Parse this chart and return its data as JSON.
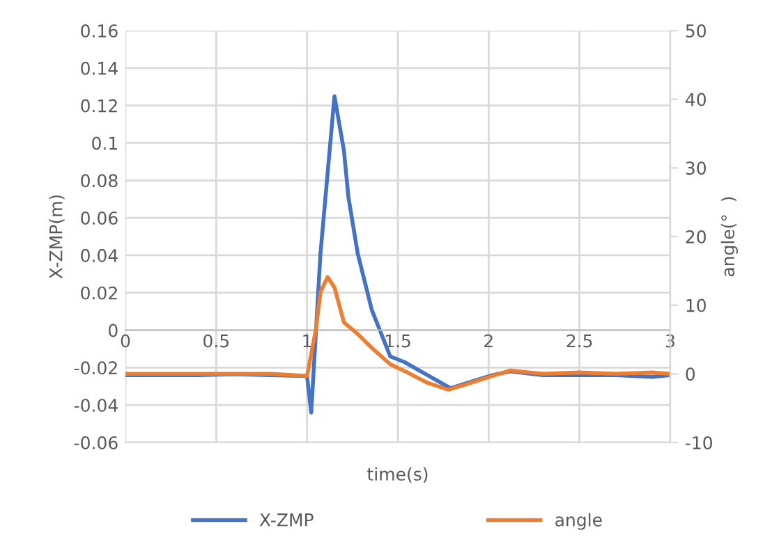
{
  "chart_data": {
    "type": "line",
    "xlabel": "time(s)",
    "ylabel": "X-ZMP(m)",
    "y2label": "angle(°  )",
    "xlim": [
      0,
      3
    ],
    "xticks": [
      0,
      0.5,
      1,
      1.5,
      2,
      2.5,
      3
    ],
    "ylim": [
      -0.06,
      0.16
    ],
    "yticks": [
      -0.06,
      -0.04,
      -0.02,
      0,
      0.02,
      0.04,
      0.06,
      0.08,
      0.1,
      0.12,
      0.14,
      0.16
    ],
    "y2lim": [
      -10,
      50
    ],
    "y2ticks": [
      -10,
      0,
      10,
      20,
      30,
      40,
      50
    ],
    "grid": true,
    "legend": "bottom",
    "marker": "none",
    "line_style": "solid",
    "series": [
      {
        "name": "X-ZMP",
        "color": "#4472c4",
        "x": [
          0,
          0.2,
          0.4,
          0.6,
          0.8,
          1.0,
          1.023,
          1.074,
          1.151,
          1.203,
          1.228,
          1.279,
          1.356,
          1.458,
          1.535,
          1.663,
          1.79,
          2.02,
          2.12,
          2.3,
          2.5,
          2.7,
          2.9,
          3.0
        ],
        "values": [
          -0.024,
          -0.024,
          -0.024,
          -0.0235,
          -0.024,
          -0.0245,
          -0.044,
          0.041,
          0.125,
          0.096,
          0.071,
          0.041,
          0.011,
          -0.014,
          -0.017,
          -0.024,
          -0.031,
          -0.024,
          -0.022,
          -0.024,
          -0.024,
          -0.024,
          -0.025,
          -0.024
        ]
      },
      {
        "name": "angle",
        "color": "#ed7d31",
        "axis": "y2",
        "x": [
          0,
          0.2,
          0.4,
          0.6,
          0.8,
          1.0,
          1.049,
          1.074,
          1.113,
          1.151,
          1.203,
          1.279,
          1.356,
          1.458,
          1.56,
          1.663,
          1.778,
          1.868,
          2.02,
          2.12,
          2.3,
          2.5,
          2.7,
          2.9,
          3.0
        ],
        "values": [
          0,
          0,
          0,
          0,
          0,
          -0.3,
          6.5,
          11.9,
          14.1,
          12.6,
          7.5,
          5.8,
          3.8,
          1.4,
          0.1,
          -1.3,
          -2.3,
          -1.6,
          -0.3,
          0.5,
          0,
          0.2,
          0,
          0.2,
          0
        ]
      }
    ]
  }
}
